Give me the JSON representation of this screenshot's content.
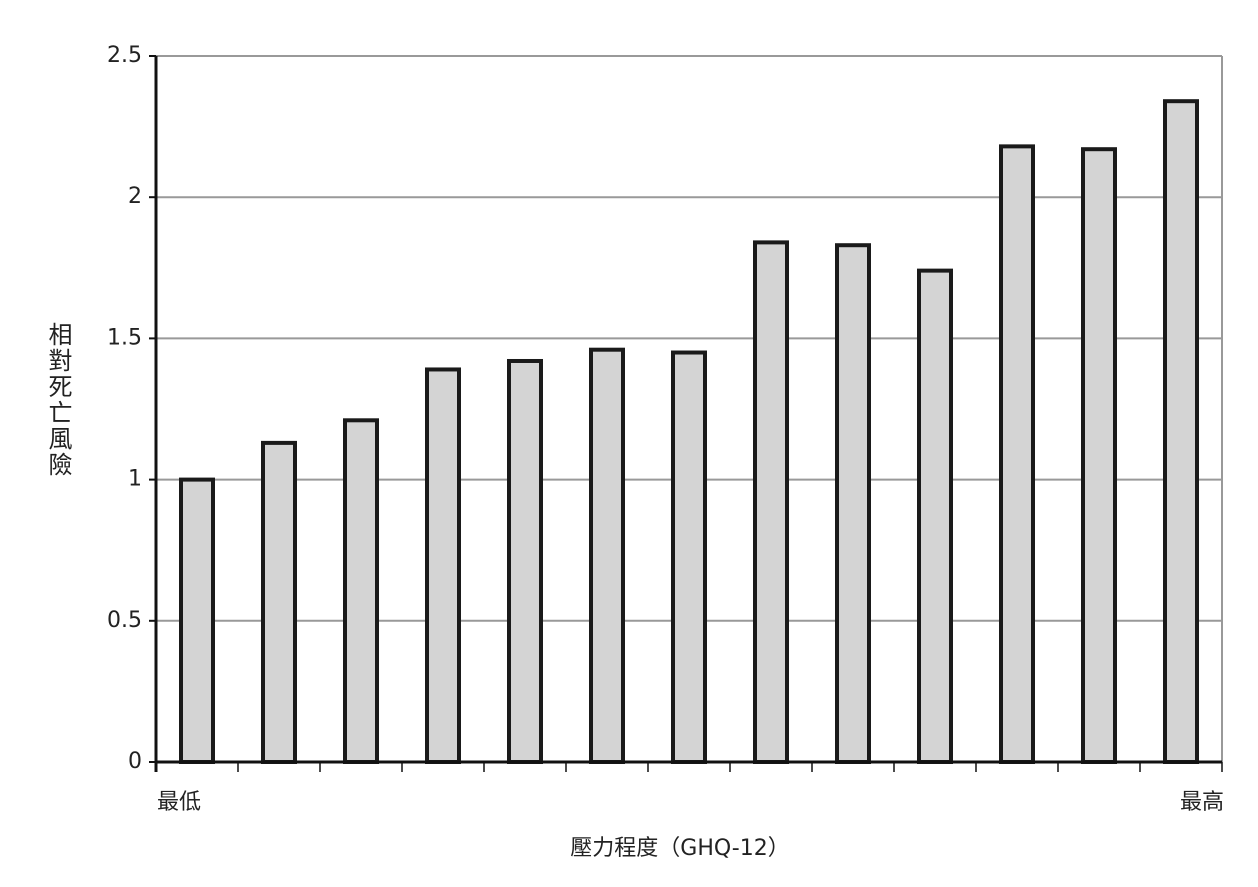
{
  "chart_data": {
    "type": "bar",
    "y_label": "相對死亡風險",
    "x_label": "壓力程度（GHQ-12）",
    "categories": [
      "最低",
      null,
      null,
      null,
      null,
      null,
      null,
      null,
      null,
      null,
      null,
      null,
      "最高"
    ],
    "values": [
      1.0,
      1.13,
      1.21,
      1.39,
      1.42,
      1.46,
      1.45,
      1.84,
      1.83,
      1.74,
      2.18,
      2.17,
      2.34
    ],
    "color": "#d4d4d4",
    "ylim": [
      0,
      2.5
    ],
    "yticks": [
      0,
      0.5,
      1,
      1.5,
      2,
      2.5
    ],
    "grid": true
  }
}
